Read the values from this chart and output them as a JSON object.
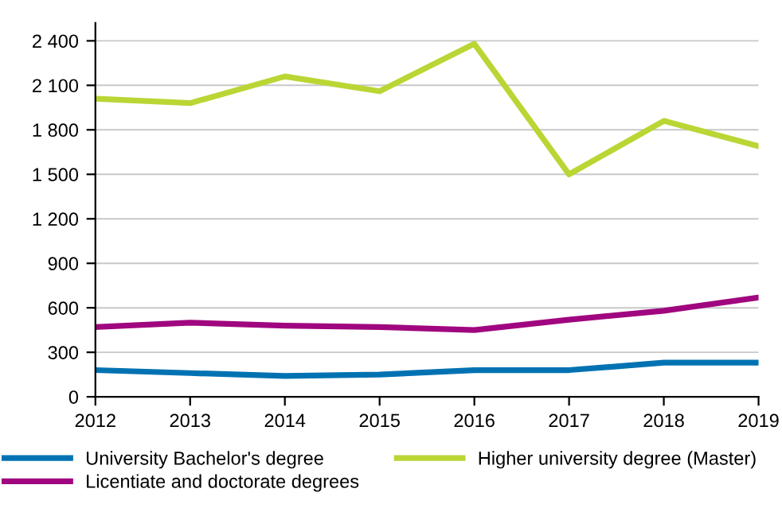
{
  "chart_data": {
    "type": "line",
    "x": [
      2012,
      2013,
      2014,
      2015,
      2016,
      2017,
      2018,
      2019
    ],
    "xlim": [
      2012,
      2019
    ],
    "xticks": [
      2012,
      2013,
      2014,
      2015,
      2016,
      2017,
      2018,
      2019
    ],
    "ylim": [
      0,
      2520
    ],
    "yticks": [
      0,
      300,
      600,
      900,
      {
        "value": 1200,
        "label": "1 200"
      },
      {
        "value": 1500,
        "label": "1 500"
      },
      {
        "value": 1800,
        "label": "1 800"
      },
      {
        "value": 2100,
        "label": "2 100"
      },
      {
        "value": 2400,
        "label": "2 400"
      }
    ],
    "grid": "y",
    "legend": "bottom",
    "marker": "none",
    "line_style": "solid",
    "series": [
      {
        "name": "University Bachelor's degree",
        "color": "#0072b2",
        "values": [
          180,
          160,
          140,
          150,
          180,
          180,
          230,
          230
        ]
      },
      {
        "name": "Higher university degree (Master)",
        "color": "#b9d634",
        "values": [
          2010,
          1980,
          2160,
          2060,
          2380,
          1500,
          1860,
          1690
        ]
      },
      {
        "name": "Licentiate and doctorate degrees",
        "color": "#a0067f",
        "values": [
          470,
          500,
          480,
          470,
          450,
          520,
          580,
          670
        ]
      }
    ]
  }
}
